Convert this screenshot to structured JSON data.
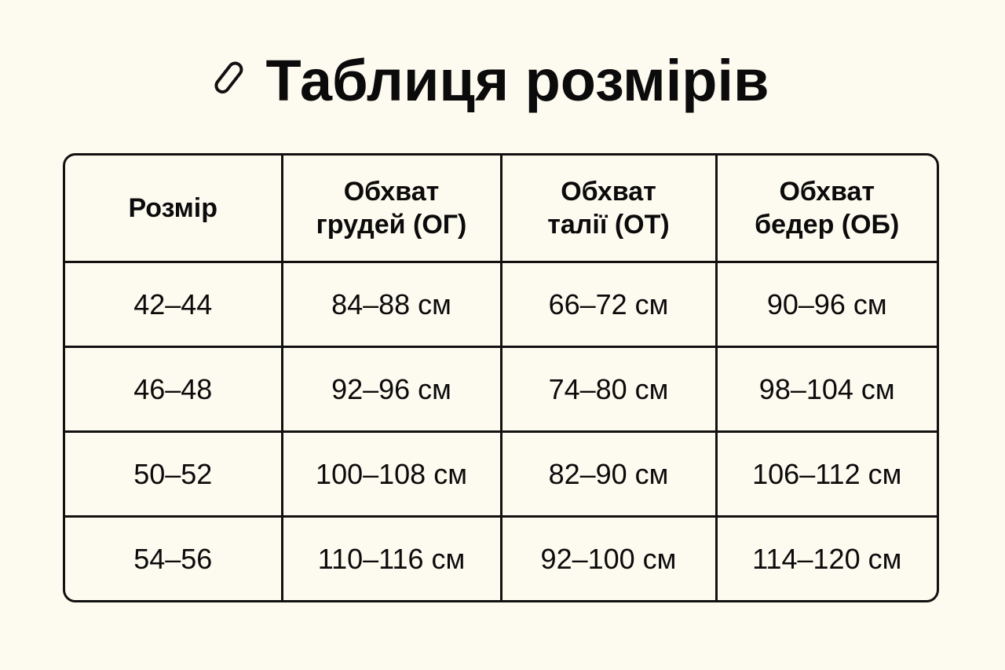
{
  "title": "Таблиця розмірів",
  "icon": "pill-outline-icon",
  "table": {
    "headers": [
      [
        "Розмір"
      ],
      [
        "Обхват",
        "грудей (ОГ)"
      ],
      [
        "Обхват",
        "талії (ОТ)"
      ],
      [
        "Обхват",
        "бедер (ОБ)"
      ]
    ],
    "rows": [
      [
        "42–44",
        "84–88 см",
        "66–72 см",
        "90–96 см"
      ],
      [
        "46–48",
        "92–96 см",
        "74–80 см",
        "98–104 см"
      ],
      [
        "50–52",
        "100–108 см",
        "82–90 см",
        "106–112 см"
      ],
      [
        "54–56",
        "110–116 см",
        "92–100 см",
        "114–120 см"
      ]
    ]
  }
}
